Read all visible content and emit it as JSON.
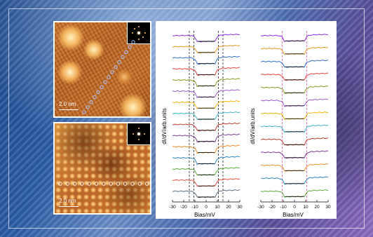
{
  "stm_top": {
    "scale_label": "2.0 nm",
    "atom_circle_color": "#aac4ff",
    "marker_count": 15
  },
  "stm_bottom": {
    "scale_label": "2.0 nm",
    "marker_count": 13
  },
  "spectra_left": {
    "ylabel": "dI/dV/arb.units",
    "xlabel": "Bias/mV",
    "xticks": [
      "-30",
      "-20",
      "-10",
      "0",
      "10",
      "20",
      "30"
    ],
    "dashed_lines_mV": [
      -15,
      -11,
      11,
      15
    ],
    "dashed_color": "#000000",
    "curve_count": 15
  },
  "spectra_right": {
    "ylabel": "dI/dV/arb.units",
    "xlabel": "Bias/mV",
    "xticks": [
      "-30",
      "-20",
      "-10",
      "0",
      "10",
      "20",
      "30"
    ],
    "dashed_lines_mV": [
      -11,
      11
    ],
    "dashed_color": "#e0409a",
    "curve_count": 13
  },
  "curve_colors": [
    "#8a2be2",
    "#e69a1c",
    "#2f6fd1",
    "#e8413b",
    "#7f9e1d",
    "#9b59d0",
    "#f0b400",
    "#3cb3c8",
    "#c0392b",
    "#7d3c98",
    "#f28c28",
    "#2e86c1",
    "#58a83a",
    "#e74c3c",
    "#5d6d7e"
  ]
}
